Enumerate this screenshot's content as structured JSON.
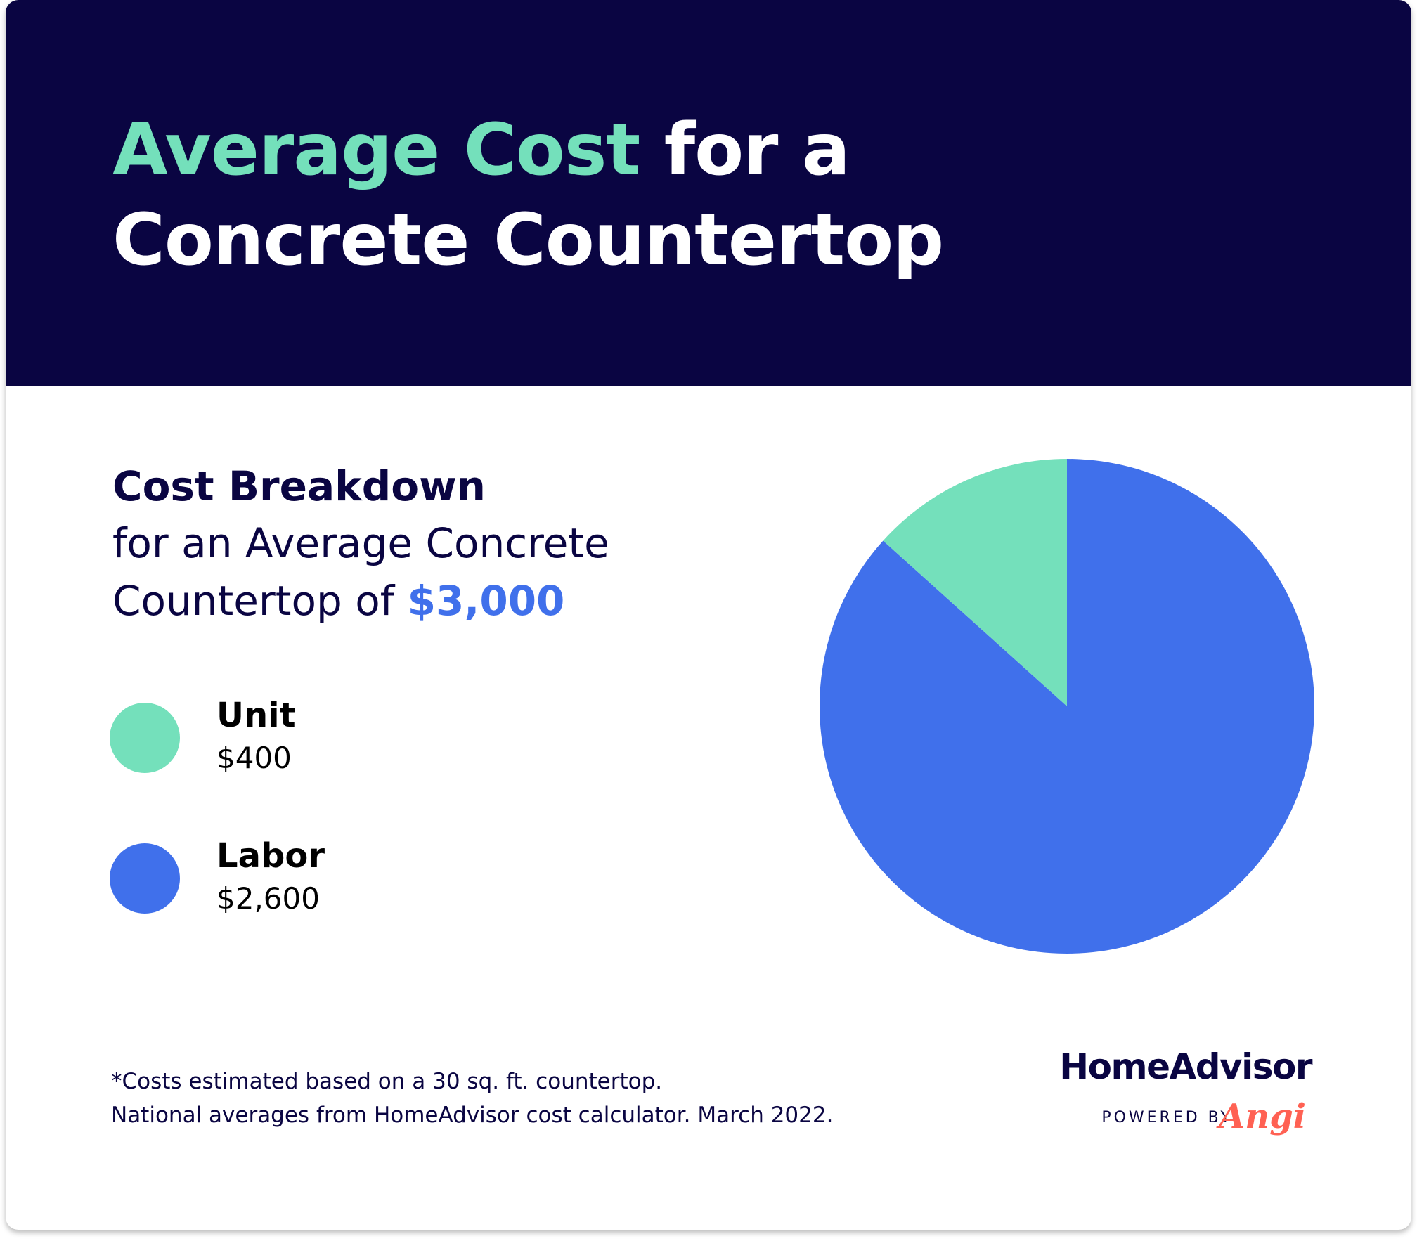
{
  "header": {
    "title_accent": "Average Cost",
    "title_rest_line1": " for a",
    "title_line2": "Concrete Countertop"
  },
  "breakdown": {
    "title": "Cost Breakdown",
    "subtitle_line1": "for an Average Concrete",
    "subtitle_line2_prefix": "Countertop of ",
    "total": "$3,000"
  },
  "legend": [
    {
      "label": "Unit",
      "value": "$400"
    },
    {
      "label": "Labor",
      "value": "$2,600"
    }
  ],
  "chart_data": {
    "type": "pie",
    "title": "",
    "categories": [
      "Unit",
      "Labor"
    ],
    "values": [
      400,
      2600
    ],
    "colors": [
      "#74e0bb",
      "#4070eb"
    ],
    "legend_position": "left"
  },
  "footnote": {
    "line1": "*Costs estimated based on a 30 sq. ft. countertop.",
    "line2": "National averages from HomeAdvisor cost calculator. March 2022."
  },
  "brand": {
    "name": "HomeAdvisor",
    "powered_by": "POWERED BY",
    "partner": "Angi"
  },
  "colors": {
    "header_bg": "#0a0542",
    "accent_green": "#74e0bb",
    "accent_blue": "#4070eb",
    "text_dark": "#0a0542",
    "angi_red": "#ff6153"
  }
}
